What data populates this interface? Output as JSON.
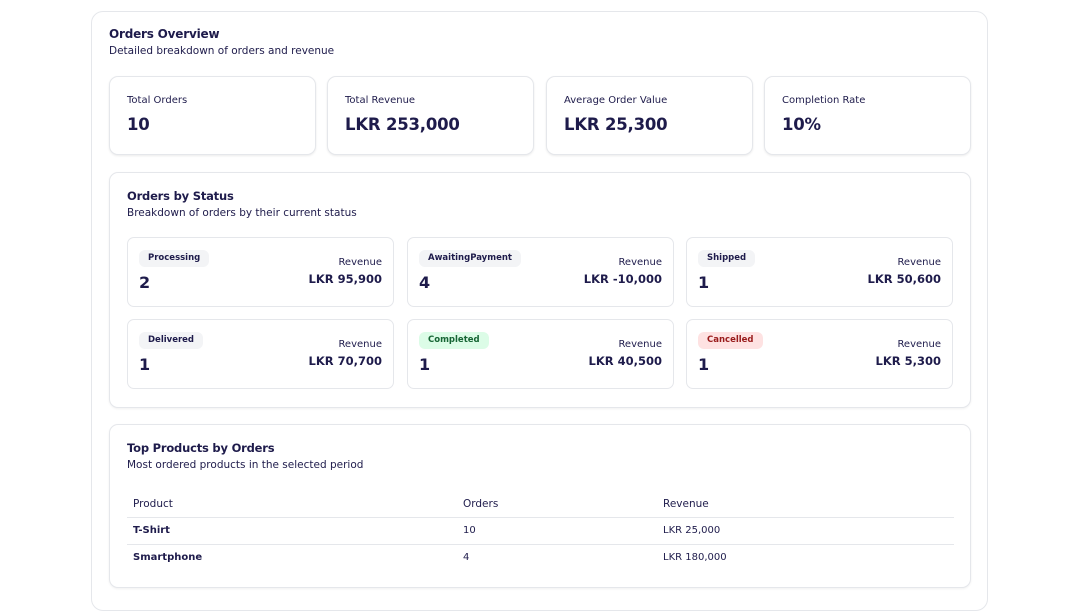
{
  "overview": {
    "title": "Orders Overview",
    "subtitle": "Detailed breakdown of orders and revenue"
  },
  "stats": [
    {
      "label": "Total Orders",
      "value": "10"
    },
    {
      "label": "Total Revenue",
      "value": "LKR 253,000"
    },
    {
      "label": "Average Order Value",
      "value": "LKR 25,300"
    },
    {
      "label": "Completion Rate",
      "value": "10%"
    }
  ],
  "status_section": {
    "title": "Orders by Status",
    "subtitle": "Breakdown of orders by their current status",
    "revenue_label": "Revenue",
    "items": [
      {
        "status": "Processing",
        "count": "2",
        "revenue": "LKR 95,900",
        "badge_color": "#f3f4f6"
      },
      {
        "status": "AwaitingPayment",
        "count": "4",
        "revenue": "LKR -10,000",
        "badge_color": "#f3f4f6"
      },
      {
        "status": "Shipped",
        "count": "1",
        "revenue": "LKR 50,600",
        "badge_color": "#f3f4f6"
      },
      {
        "status": "Delivered",
        "count": "1",
        "revenue": "LKR 70,700",
        "badge_color": "#f3f4f6"
      },
      {
        "status": "Completed",
        "count": "1",
        "revenue": "LKR 40,500",
        "badge_color": "#dcfce7"
      },
      {
        "status": "Cancelled",
        "count": "1",
        "revenue": "LKR 5,300",
        "badge_color": "#fee2e2"
      }
    ]
  },
  "products_section": {
    "title": "Top Products by Orders",
    "subtitle": "Most ordered products in the selected period",
    "columns": [
      "Product",
      "Orders",
      "Revenue"
    ],
    "rows": [
      {
        "product": "T-Shirt",
        "orders": "10",
        "revenue": "LKR 25,000"
      },
      {
        "product": "Smartphone",
        "orders": "4",
        "revenue": "LKR 180,000"
      }
    ]
  },
  "colors": {
    "text": "#1e1b4b",
    "border": "#e5e7eb",
    "badge_default": "#f3f4f6",
    "badge_completed": "#dcfce7",
    "badge_cancelled": "#fee2e2"
  }
}
